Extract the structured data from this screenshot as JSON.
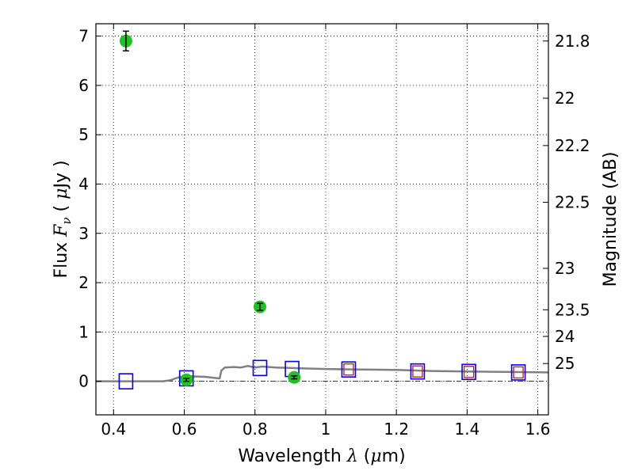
{
  "chart_data": {
    "type": "scatter",
    "xlabel_text": "Wavelength",
    "xlabel_symbol": "λ",
    "xlabel_unit_open": " (",
    "xlabel_unit_mu": "μ",
    "xlabel_unit_close": "m)",
    "ylabel_text": "Flux",
    "ylabel_symbol_F": "F",
    "ylabel_symbol_nu": "ν",
    "ylabel_unit_open": "( ",
    "ylabel_unit_mu": "μ",
    "ylabel_unit_close": "Jy )",
    "y2label": "Magnitude (AB)",
    "xlim": [
      0.35,
      1.63
    ],
    "ylim": [
      -0.68,
      7.25
    ],
    "grid": true,
    "x_ticks": [
      0.4,
      0.6,
      0.8,
      1.0,
      1.2,
      1.4,
      1.6
    ],
    "x_tick_labels": [
      "0.4",
      "0.6",
      "0.8",
      "1",
      "1.2",
      "1.4",
      "1.6"
    ],
    "y_ticks": [
      0,
      1,
      2,
      3,
      4,
      5,
      6,
      7
    ],
    "y_tick_labels": [
      "0",
      "1",
      "2",
      "3",
      "4",
      "5",
      "6",
      "7"
    ],
    "y2_ticks": [
      {
        "label": "21.8",
        "flux": 6.9
      },
      {
        "label": "22",
        "flux": 5.74
      },
      {
        "label": "22.2",
        "flux": 4.78
      },
      {
        "label": "22.5",
        "flux": 3.63
      },
      {
        "label": "23",
        "flux": 2.29
      },
      {
        "label": "23.5",
        "flux": 1.45
      },
      {
        "label": "24",
        "flux": 0.91
      },
      {
        "label": "25",
        "flux": 0.36
      }
    ],
    "colors": {
      "observed": "#1ec41e",
      "model_blue": "#0000ff",
      "model_red": "#cc2222",
      "model_line": "#808080"
    },
    "series": [
      {
        "kind": "observed",
        "points": [
          {
            "x": 0.435,
            "y": 6.9,
            "err": 0.2
          },
          {
            "x": 0.606,
            "y": 0.03,
            "err": 0.03
          },
          {
            "x": 0.814,
            "y": 1.51,
            "err": 0.07
          },
          {
            "x": 0.911,
            "y": 0.08,
            "err": 0.03
          }
        ]
      },
      {
        "kind": "model_blue",
        "points": [
          {
            "x": 0.435,
            "y": 0.0
          },
          {
            "x": 0.606,
            "y": 0.06
          },
          {
            "x": 0.814,
            "y": 0.27
          },
          {
            "x": 0.905,
            "y": 0.25
          },
          {
            "x": 1.065,
            "y": 0.24
          },
          {
            "x": 1.26,
            "y": 0.2
          },
          {
            "x": 1.405,
            "y": 0.19
          },
          {
            "x": 1.545,
            "y": 0.18
          }
        ]
      },
      {
        "kind": "model_red",
        "points": [
          {
            "x": 1.065,
            "y": 0.24
          },
          {
            "x": 1.26,
            "y": 0.2
          },
          {
            "x": 1.405,
            "y": 0.19
          },
          {
            "x": 1.545,
            "y": 0.18
          }
        ]
      },
      {
        "kind": "model_line",
        "points": [
          {
            "x": 0.35,
            "y": 0.0
          },
          {
            "x": 0.54,
            "y": 0.0
          },
          {
            "x": 0.56,
            "y": 0.02
          },
          {
            "x": 0.575,
            "y": 0.06
          },
          {
            "x": 0.59,
            "y": 0.09
          },
          {
            "x": 0.6,
            "y": 0.07
          },
          {
            "x": 0.62,
            "y": 0.1
          },
          {
            "x": 0.66,
            "y": 0.09
          },
          {
            "x": 0.695,
            "y": 0.06
          },
          {
            "x": 0.7,
            "y": 0.06
          },
          {
            "x": 0.705,
            "y": 0.22
          },
          {
            "x": 0.715,
            "y": 0.28
          },
          {
            "x": 0.74,
            "y": 0.29
          },
          {
            "x": 0.76,
            "y": 0.28
          },
          {
            "x": 0.78,
            "y": 0.31
          },
          {
            "x": 0.8,
            "y": 0.28
          },
          {
            "x": 0.82,
            "y": 0.3
          },
          {
            "x": 0.86,
            "y": 0.28
          },
          {
            "x": 0.9,
            "y": 0.27
          },
          {
            "x": 0.94,
            "y": 0.26
          },
          {
            "x": 1.0,
            "y": 0.25
          },
          {
            "x": 1.1,
            "y": 0.24
          },
          {
            "x": 1.2,
            "y": 0.23
          },
          {
            "x": 1.3,
            "y": 0.21
          },
          {
            "x": 1.4,
            "y": 0.2
          },
          {
            "x": 1.5,
            "y": 0.19
          },
          {
            "x": 1.63,
            "y": 0.18
          }
        ]
      }
    ]
  }
}
